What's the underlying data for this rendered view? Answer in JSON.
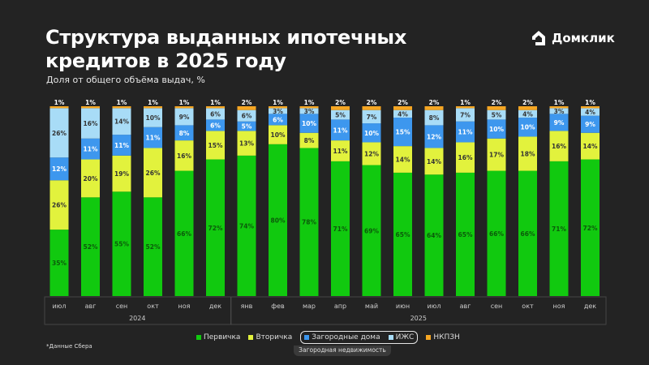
{
  "brand": {
    "name": "Домклик",
    "logo_icon": "house-icon"
  },
  "footnote": "*Данные Сбера",
  "colors": {
    "background": "#232323",
    "Первичка": "#11c90f",
    "Вторичка": "#e2f23d",
    "Загородные дома": "#3d97ee",
    "ИЖС": "#a8dcf7",
    "НКПЗН": "#f5a623"
  },
  "chart_data": {
    "type": "bar",
    "stacked": true,
    "title": "Структура выданных ипотечных кредитов в 2025 году",
    "subtitle": "Доля от общего объёма выдач, %",
    "categories": [
      "июл",
      "авг",
      "сен",
      "окт",
      "ноя",
      "дек",
      "янв",
      "фев",
      "мар",
      "апр",
      "май",
      "июн",
      "июл",
      "авг",
      "сен",
      "окт",
      "ноя",
      "дек"
    ],
    "year_groups": [
      {
        "label": "2024",
        "count": 6
      },
      {
        "label": "2025",
        "count": 12
      }
    ],
    "series": [
      {
        "name": "Первичка",
        "values": [
          35,
          52,
          55,
          52,
          66,
          72,
          74,
          80,
          78,
          71,
          69,
          65,
          64,
          65,
          66,
          66,
          71,
          72
        ]
      },
      {
        "name": "Вторичка",
        "values": [
          26,
          20,
          19,
          26,
          16,
          15,
          13,
          10,
          8,
          11,
          12,
          14,
          14,
          16,
          17,
          18,
          16,
          14
        ]
      },
      {
        "name": "Загородные дома",
        "values": [
          12,
          11,
          11,
          11,
          8,
          6,
          5,
          6,
          10,
          11,
          10,
          15,
          12,
          11,
          10,
          10,
          9,
          9
        ]
      },
      {
        "name": "ИЖС",
        "values": [
          26,
          16,
          14,
          10,
          9,
          6,
          6,
          3,
          3,
          5,
          7,
          4,
          8,
          7,
          5,
          4,
          3,
          4
        ]
      },
      {
        "name": "НКПЗН",
        "values": [
          1,
          1,
          1,
          1,
          1,
          1,
          2,
          1,
          1,
          2,
          2,
          2,
          2,
          1,
          2,
          2,
          1,
          1
        ]
      }
    ],
    "unit": "%",
    "legend_group": {
      "label": "Загородная недвижимость",
      "members": [
        "Загородные дома",
        "ИЖС"
      ]
    },
    "legend_position": "bottom",
    "grid": false
  }
}
